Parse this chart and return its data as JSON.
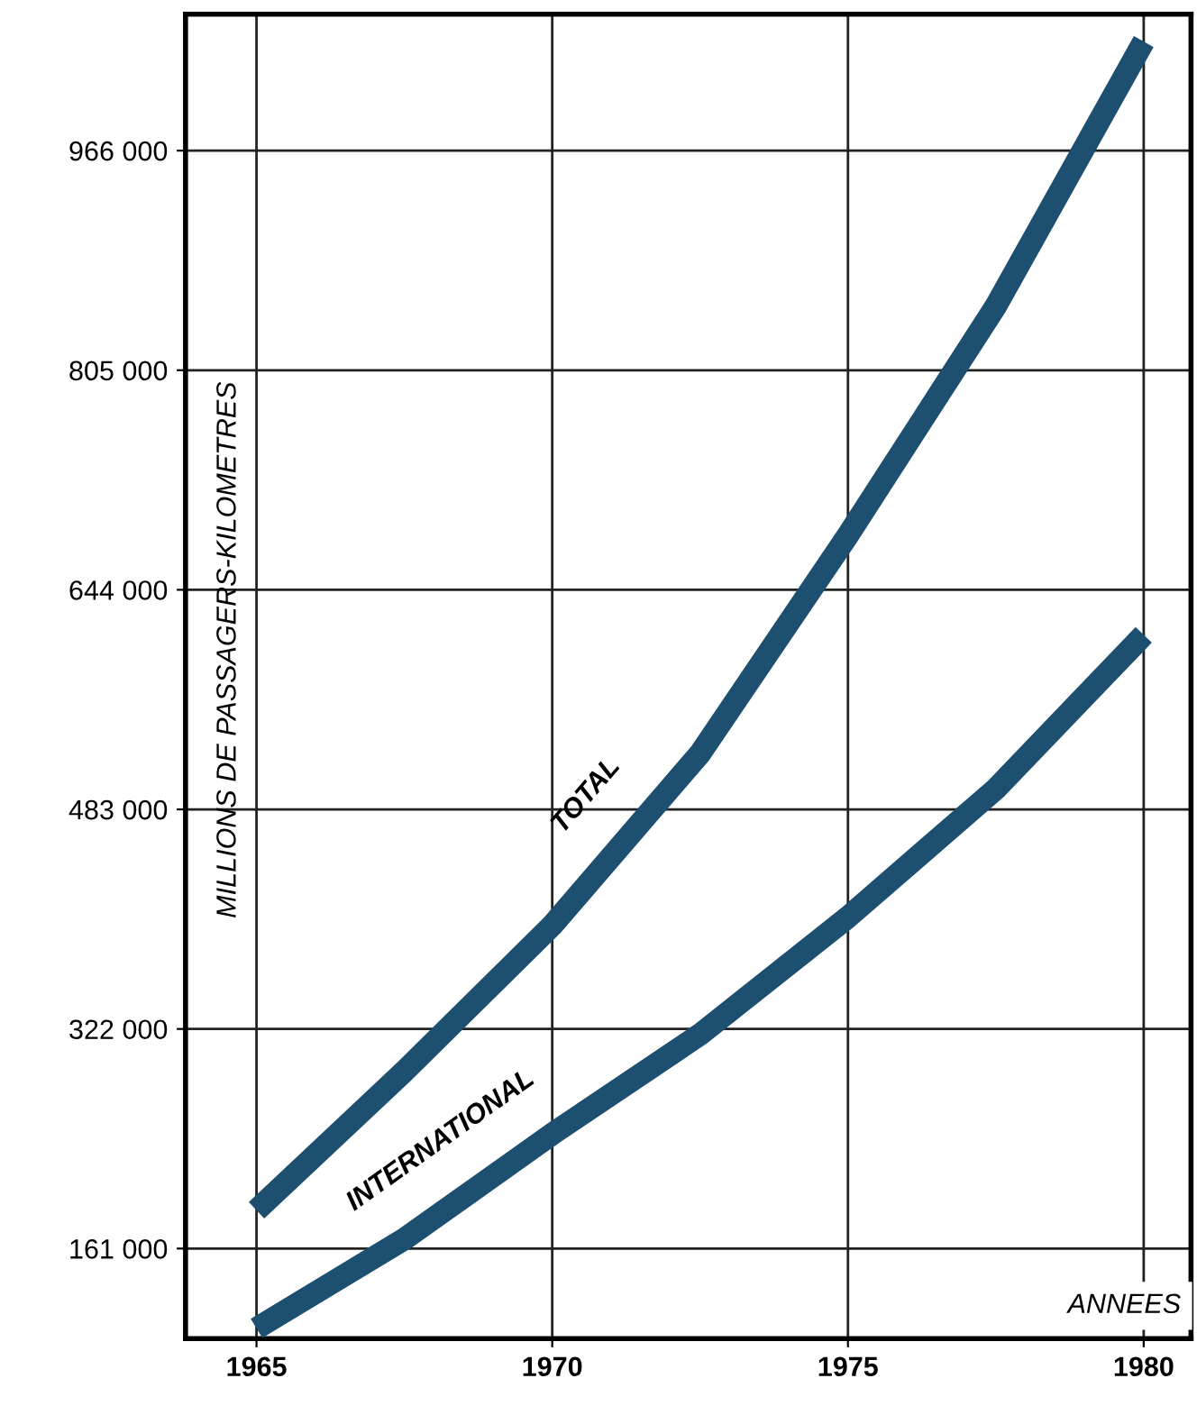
{
  "chart_data": {
    "type": "line",
    "xlabel": "ANNEES",
    "ylabel": "MILLIONS DE PASSAGERS-KILOMETRES",
    "xlim": [
      1963.8,
      1980.8
    ],
    "ylim": [
      95000,
      1066000
    ],
    "xticks": [
      1965,
      1970,
      1975,
      1980
    ],
    "yticks": [
      {
        "value": 161000,
        "label": "161 000"
      },
      {
        "value": 322000,
        "label": "322 000"
      },
      {
        "value": 483000,
        "label": "483 000"
      },
      {
        "value": 644000,
        "label": "644 000"
      },
      {
        "value": 805000,
        "label": "805 000"
      },
      {
        "value": 966000,
        "label": "966 000"
      }
    ],
    "grid": true,
    "legend": false,
    "marker": "none",
    "line_style": "solid",
    "series": [
      {
        "name": "TOTAL",
        "color": "#1d4f70",
        "x": [
          1965,
          1967.5,
          1970,
          1972.5,
          1975,
          1977.5,
          1980
        ],
        "values": [
          189000,
          291000,
          398000,
          524000,
          684000,
          852000,
          1046000
        ]
      },
      {
        "name": "INTERNATIONAL",
        "color": "#1d4f70",
        "x": [
          1965,
          1967.5,
          1970,
          1972.5,
          1975,
          1977.5,
          1980
        ],
        "values": [
          102500,
          168000,
          245000,
          318000,
          404000,
          498000,
          611000
        ]
      }
    ]
  }
}
